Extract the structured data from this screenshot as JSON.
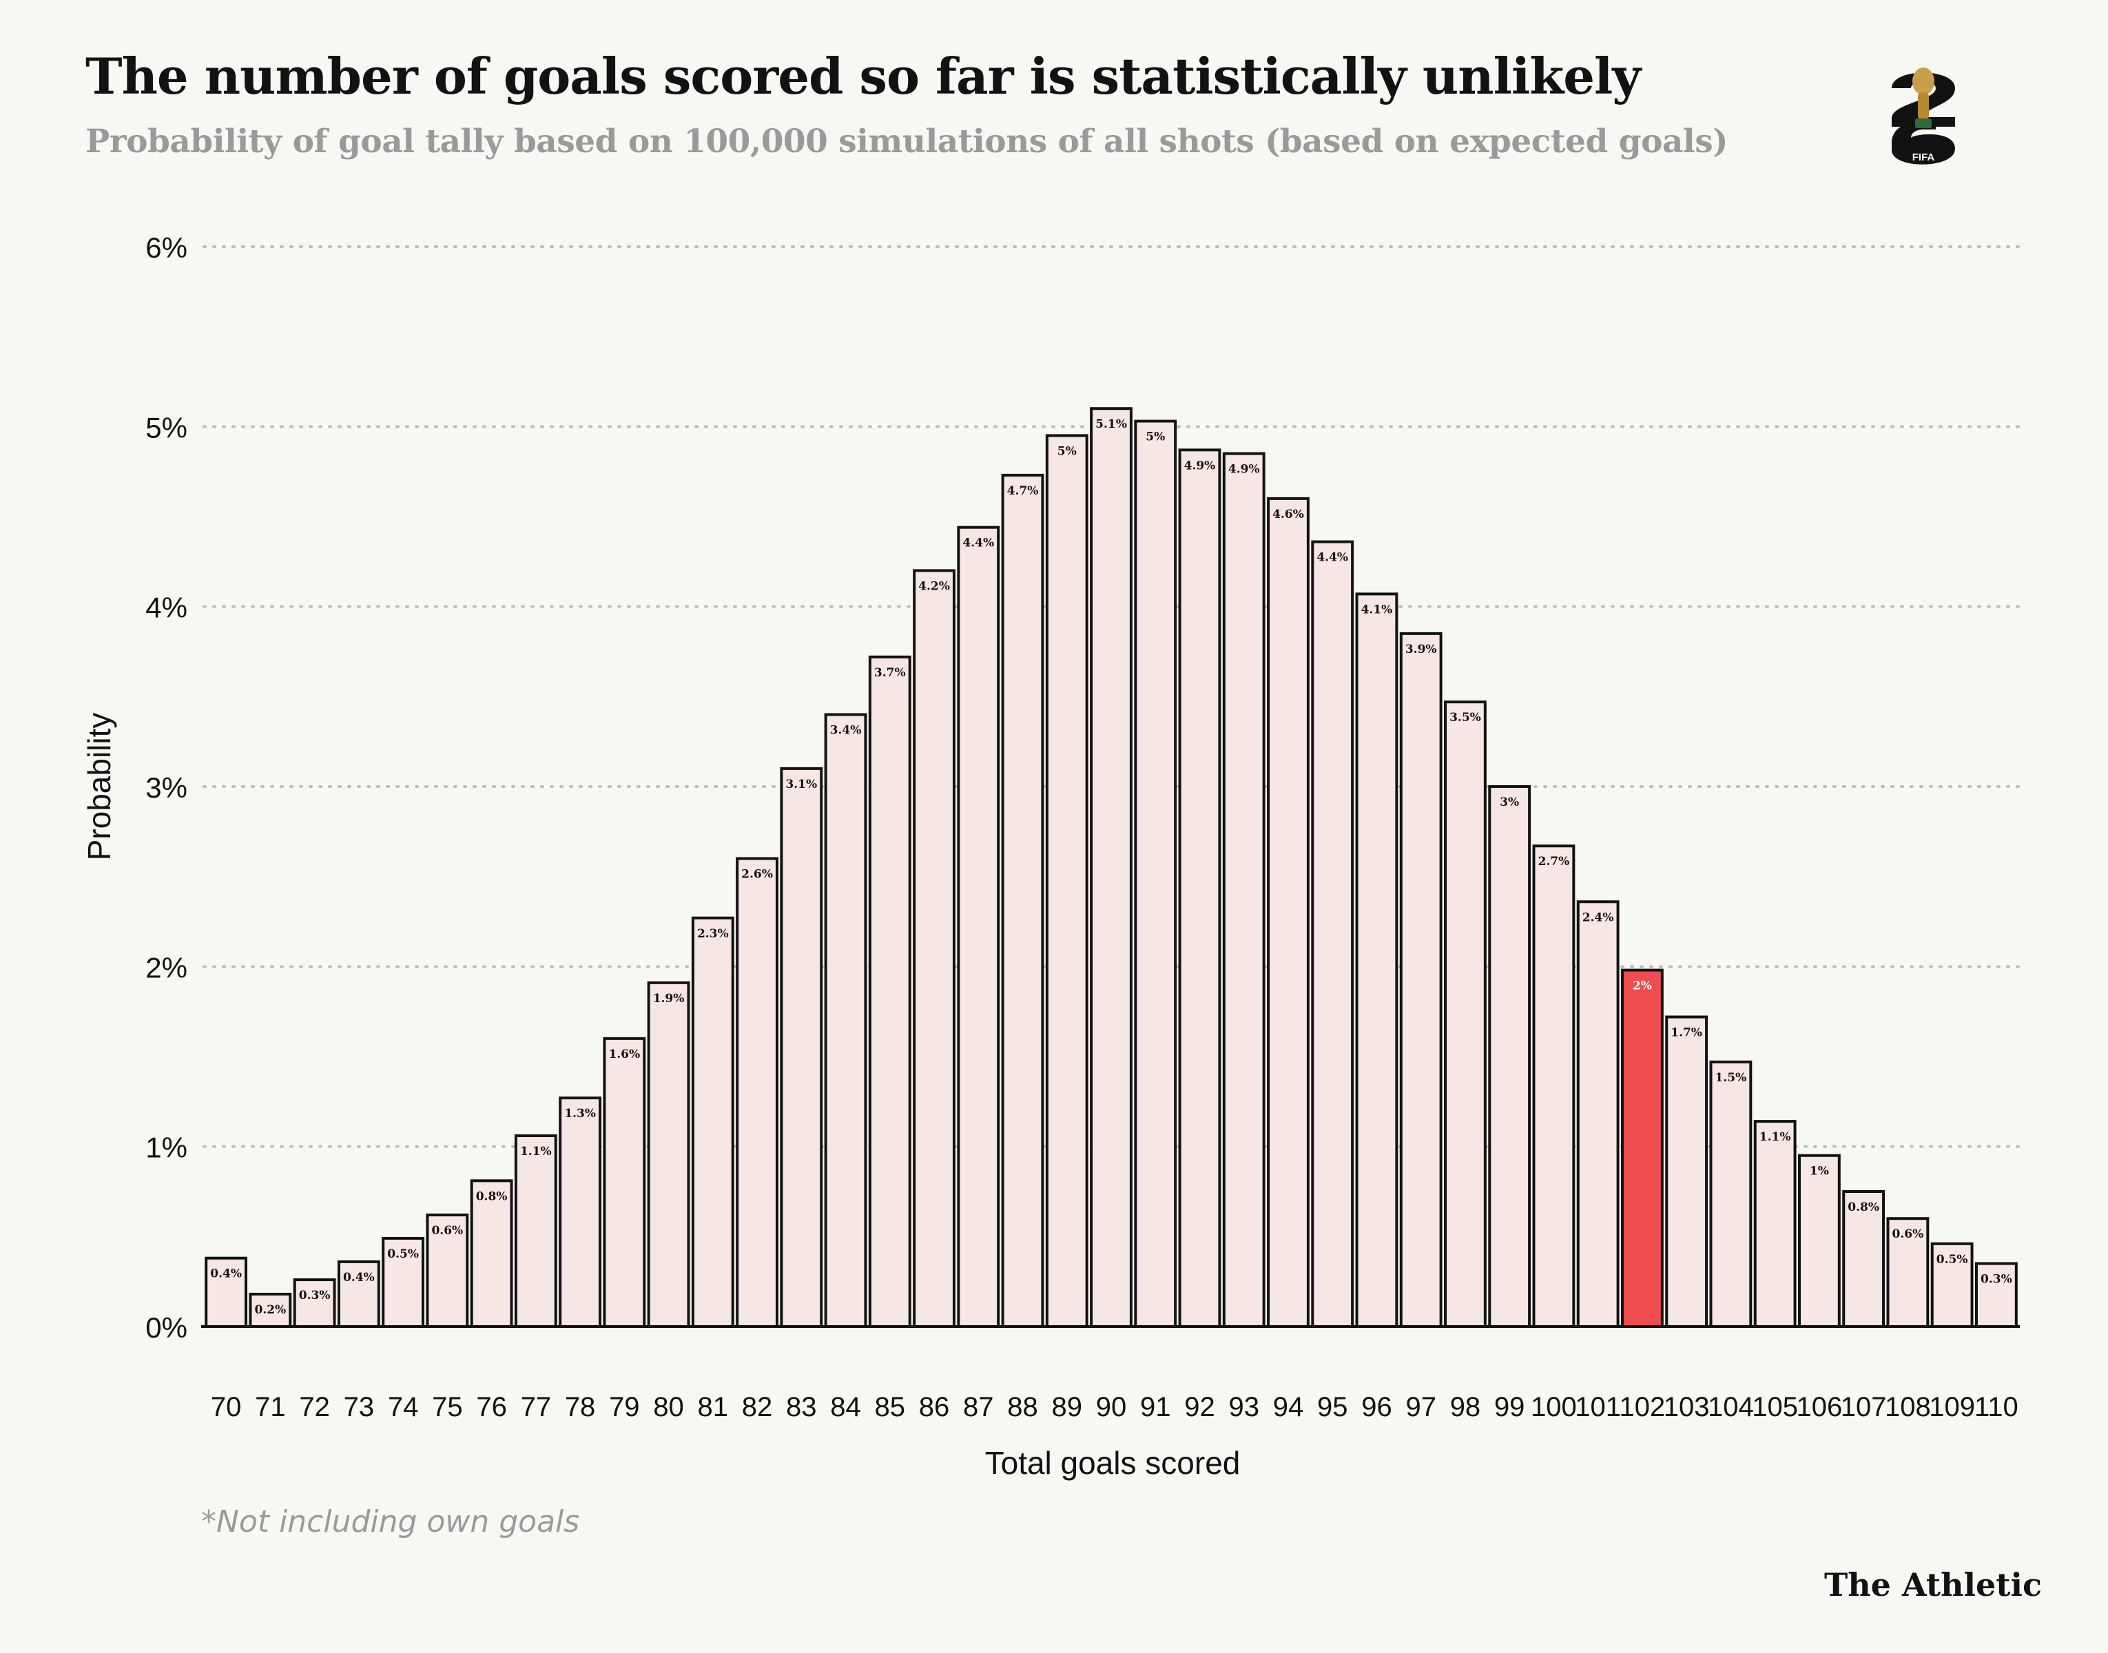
{
  "header": {
    "title": "The number of goals scored so far is statistically unlikely",
    "subtitle": "Probability of goal tally based on 100,000 simulations of all shots (based on expected goals)"
  },
  "logo": {
    "icon": "world-cup-26-trophy-icon",
    "text": "FIFA",
    "numerals": "26"
  },
  "footnote": "*Not including own goals",
  "brand": "The Athletic",
  "colors": {
    "bar_fill": "#f6e6e4",
    "bar_stroke": "#121212",
    "highlight_fill": "#ee4c4e",
    "gridline": "#bdbdbd",
    "text": "#121212",
    "muted": "#9a9a9a",
    "background": "#f7f7f4"
  },
  "chart_data": {
    "type": "bar",
    "xlabel": "Total goals scored",
    "ylabel": "Probability",
    "ylim": [
      0,
      6
    ],
    "yticks": [
      "0%",
      "1%",
      "2%",
      "3%",
      "4%",
      "5%",
      "6%"
    ],
    "grid": true,
    "highlight_category": "102",
    "categories": [
      "70",
      "71",
      "72",
      "73",
      "74",
      "75",
      "76",
      "77",
      "78",
      "79",
      "80",
      "81",
      "82",
      "83",
      "84",
      "85",
      "86",
      "87",
      "88",
      "89",
      "90",
      "91",
      "92",
      "93",
      "94",
      "95",
      "96",
      "97",
      "98",
      "99",
      "100",
      "101",
      "102",
      "103",
      "104",
      "105",
      "106",
      "107",
      "108",
      "109",
      "110"
    ],
    "values": [
      0.38,
      0.18,
      0.26,
      0.36,
      0.49,
      0.62,
      0.81,
      1.06,
      1.27,
      1.6,
      1.91,
      2.27,
      2.6,
      3.1,
      3.4,
      3.72,
      4.2,
      4.44,
      4.73,
      4.95,
      5.1,
      5.03,
      4.87,
      4.85,
      4.6,
      4.36,
      4.07,
      3.85,
      3.47,
      3.0,
      2.67,
      2.36,
      1.98,
      1.72,
      1.47,
      1.14,
      0.95,
      0.75,
      0.6,
      0.46,
      0.35
    ],
    "labels": [
      "0.4%",
      "0.2%",
      "0.3%",
      "0.4%",
      "0.5%",
      "0.6%",
      "0.8%",
      "1.1%",
      "1.3%",
      "1.6%",
      "1.9%",
      "2.3%",
      "2.6%",
      "3.1%",
      "3.4%",
      "3.7%",
      "4.2%",
      "4.4%",
      "4.7%",
      "5%",
      "5.1%",
      "5%",
      "4.9%",
      "4.9%",
      "4.6%",
      "4.4%",
      "4.1%",
      "3.9%",
      "3.5%",
      "3%",
      "2.7%",
      "2.4%",
      "2%",
      "1.7%",
      "1.5%",
      "1.1%",
      "1%",
      "0.8%",
      "0.6%",
      "0.5%",
      "0.3%"
    ]
  }
}
